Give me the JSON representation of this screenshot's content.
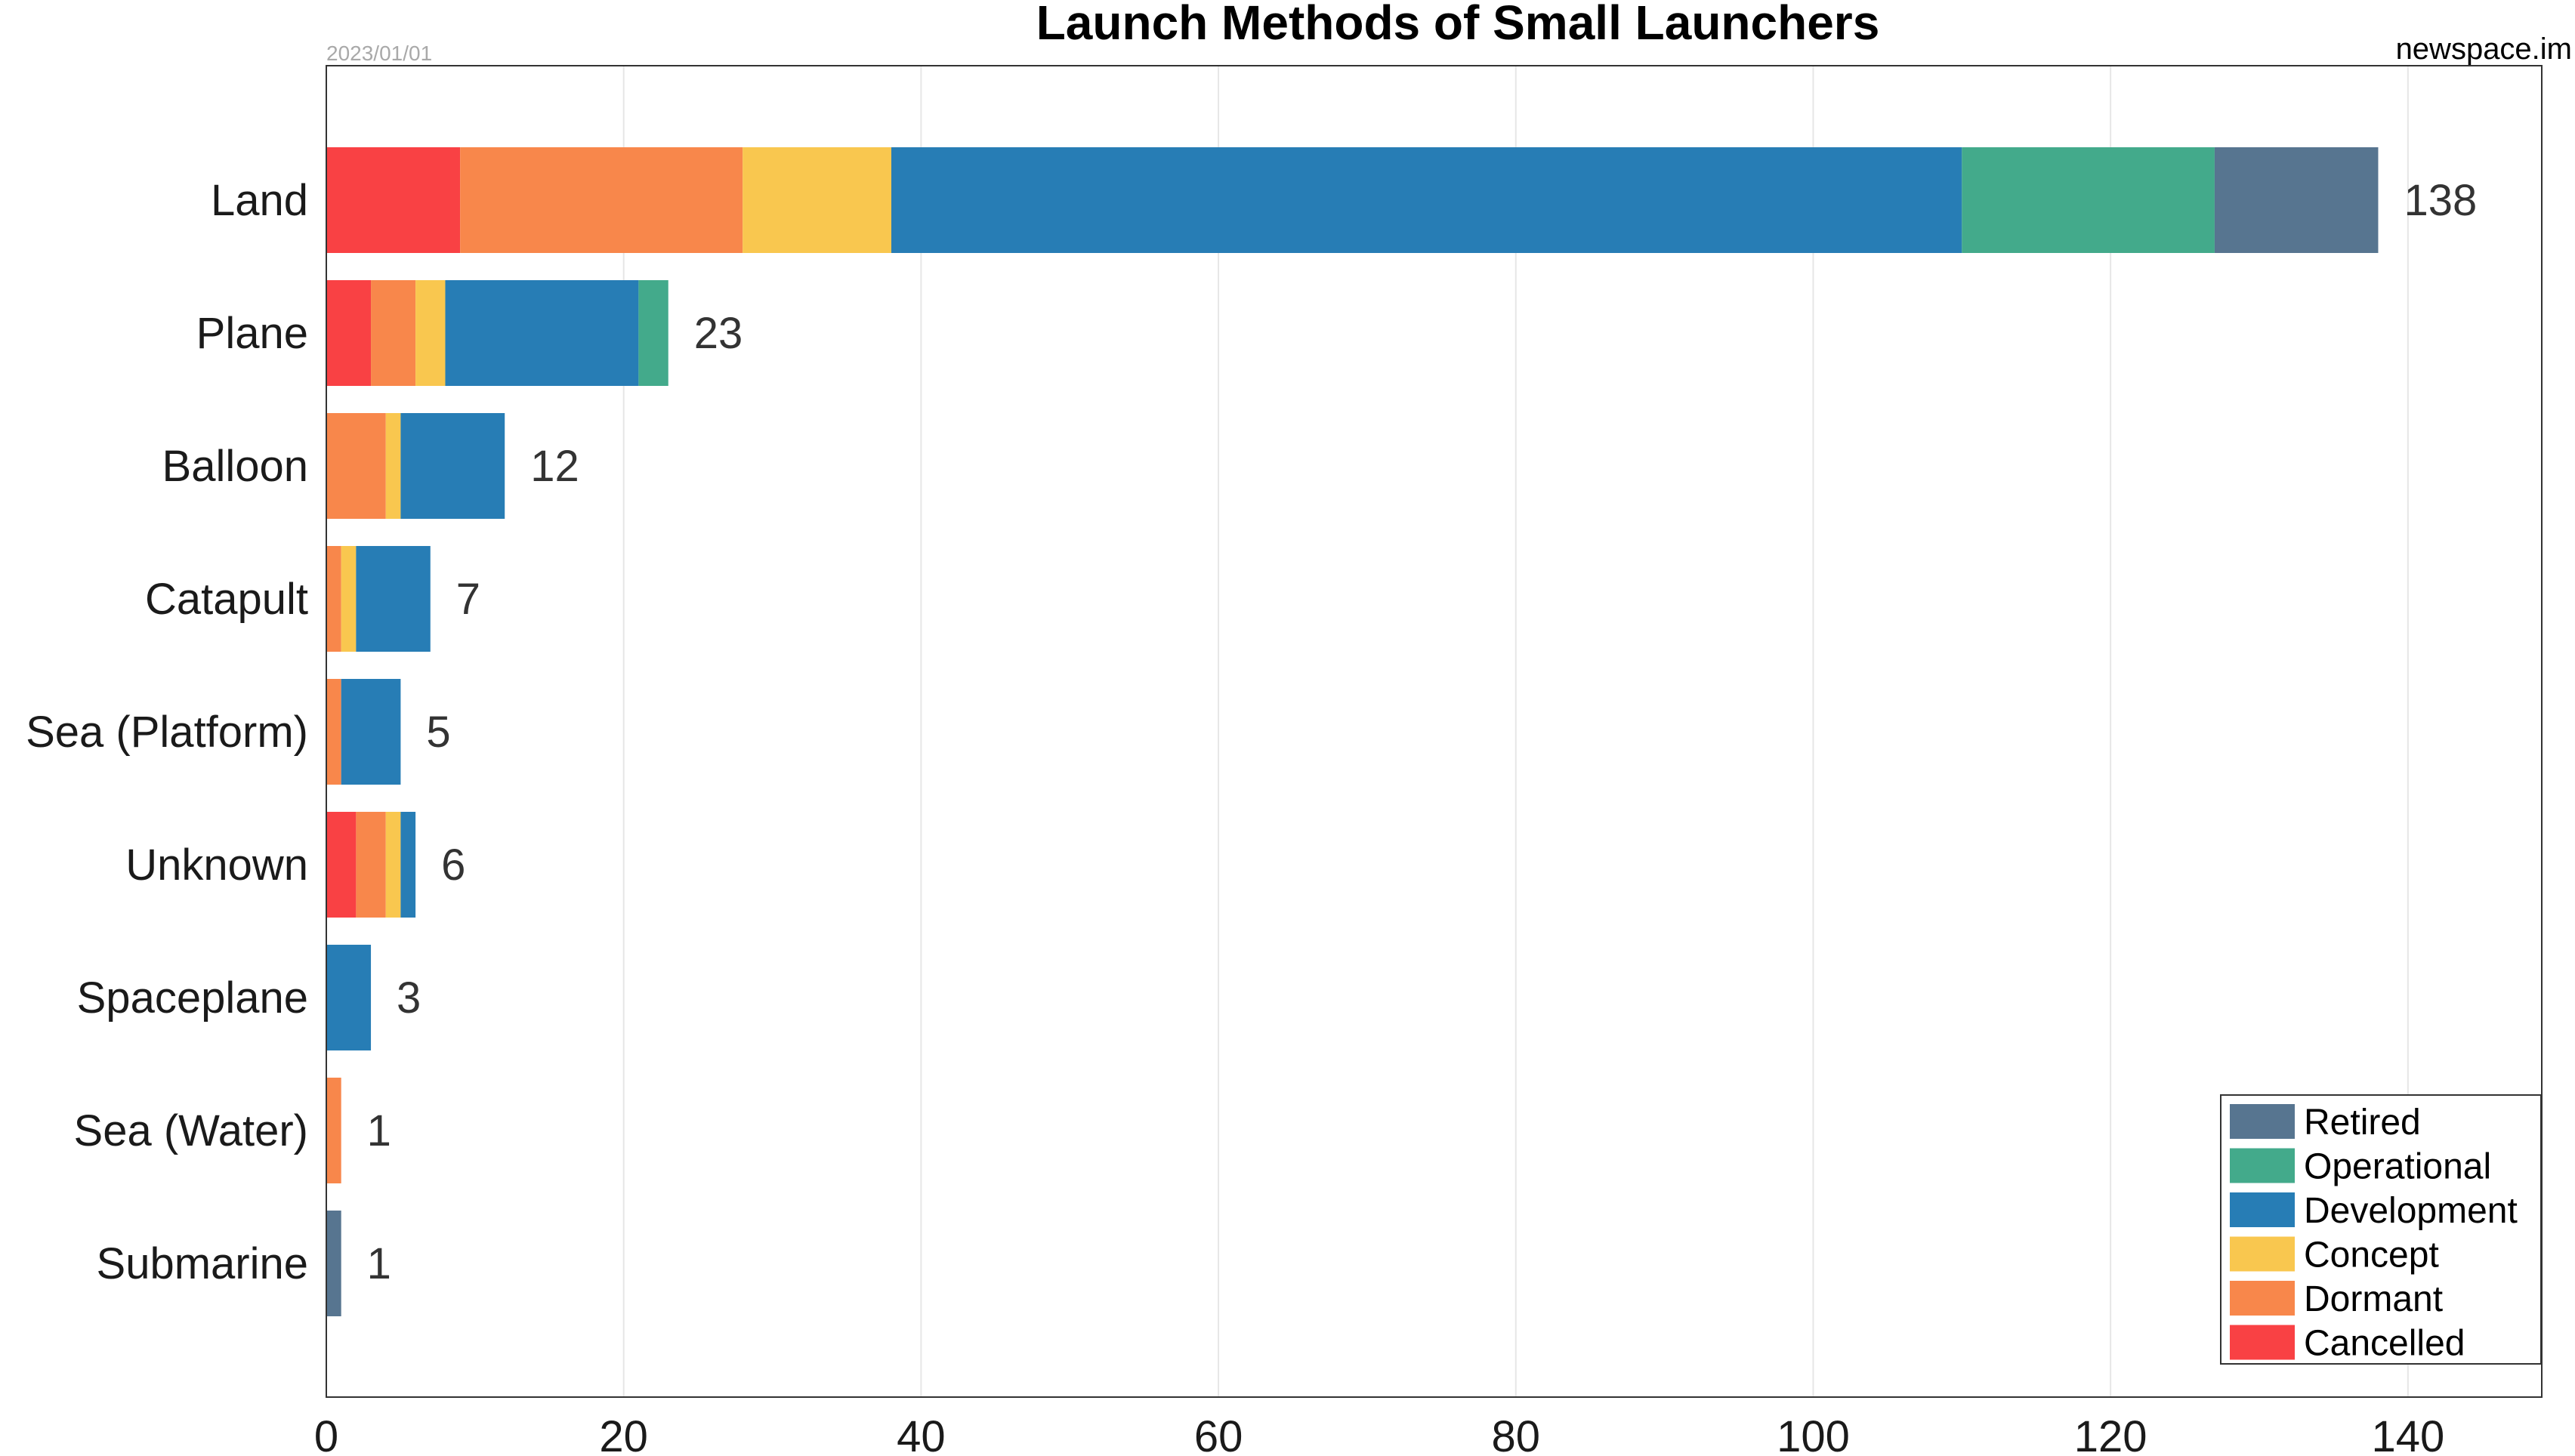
{
  "chart_data": {
    "type": "bar",
    "orientation": "horizontal",
    "stacked": true,
    "title": "Launch Methods of Small Launchers",
    "date": "2023/01/01",
    "source": "newspace.im",
    "xlabel": "",
    "ylabel": "",
    "xlim": [
      0,
      149
    ],
    "xticks": [
      0,
      20,
      40,
      60,
      80,
      100,
      120,
      140
    ],
    "grid": "vertical",
    "legend_position": "bottom-right",
    "categories": [
      "Land",
      "Plane",
      "Balloon",
      "Catapult",
      "Sea (Platform)",
      "Unknown",
      "Spaceplane",
      "Sea (Water)",
      "Submarine"
    ],
    "totals": [
      "138",
      "23",
      "12",
      "7",
      "5",
      "6",
      "3",
      "1",
      "1"
    ],
    "series": [
      {
        "name": "Cancelled",
        "color": "#f94144",
        "values": [
          9,
          3,
          0,
          0,
          0,
          2,
          0,
          0,
          0
        ]
      },
      {
        "name": "Dormant",
        "color": "#f8874b",
        "values": [
          19,
          3,
          4,
          1,
          1,
          2,
          0,
          1,
          0
        ]
      },
      {
        "name": "Concept",
        "color": "#f9c74f",
        "values": [
          10,
          2,
          1,
          1,
          0,
          1,
          0,
          0,
          0
        ]
      },
      {
        "name": "Development",
        "color": "#277db5",
        "values": [
          72,
          13,
          7,
          5,
          4,
          1,
          3,
          0,
          0
        ]
      },
      {
        "name": "Operational",
        "color": "#43aa8b",
        "values": [
          17,
          2,
          0,
          0,
          0,
          0,
          0,
          0,
          0
        ]
      },
      {
        "name": "Retired",
        "color": "#577590",
        "values": [
          11,
          0,
          0,
          0,
          0,
          0,
          0,
          0,
          1
        ]
      }
    ],
    "legend_order": [
      "Retired",
      "Operational",
      "Development",
      "Concept",
      "Dormant",
      "Cancelled"
    ]
  }
}
